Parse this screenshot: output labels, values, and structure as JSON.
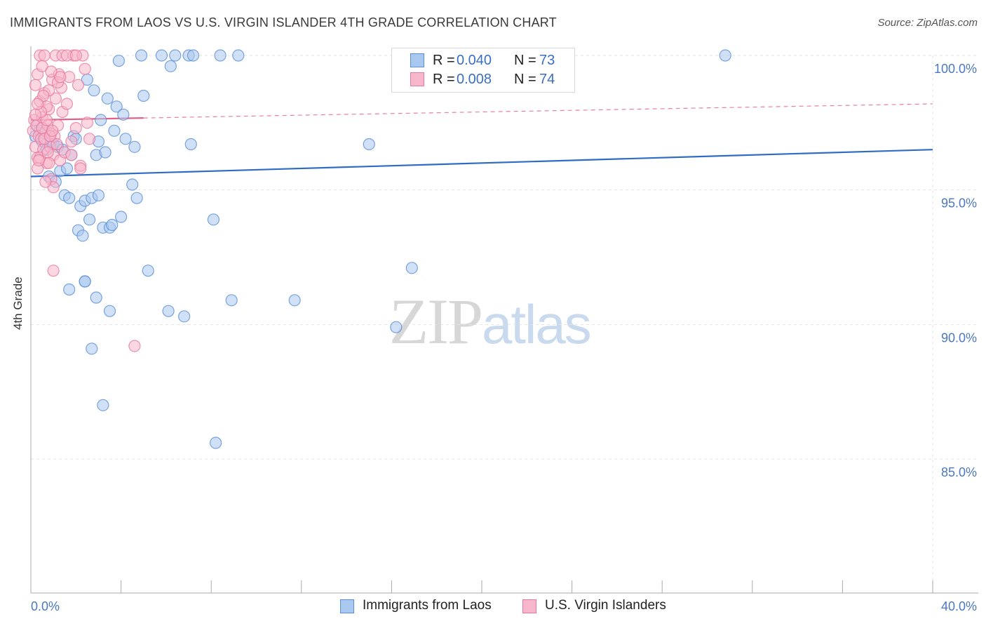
{
  "header": {
    "title": "IMMIGRANTS FROM LAOS VS U.S. VIRGIN ISLANDER 4TH GRADE CORRELATION CHART",
    "source": "Source: ZipAtlas.com"
  },
  "legend": {
    "r_label": "R =",
    "n_label": "N =",
    "rows": [
      {
        "r": "0.040",
        "n": "73"
      },
      {
        "r": "0.008",
        "n": "74"
      }
    ]
  },
  "watermark": {
    "zip": "ZIP",
    "atlas": "atlas"
  },
  "colors": {
    "blue_fill": "#a9c8f0",
    "blue_stroke": "#5b8fd6",
    "blue_line": "#2f6cc6",
    "pink_fill": "#f7b6cb",
    "pink_stroke": "#e9789d",
    "pink_line": "#e0628b",
    "tick_label": "#4a78c2",
    "grid": "#e3e3e3"
  },
  "chart_data": {
    "type": "scatter",
    "title": "IMMIGRANTS FROM LAOS VS U.S. VIRGIN ISLANDER 4TH GRADE CORRELATION CHART",
    "ylabel": "4th Grade",
    "xlim": [
      0,
      40
    ],
    "ylim": [
      80.5,
      100.8
    ],
    "x_tick_labels": [
      "0.0%",
      "40.0%"
    ],
    "y_ticks": [
      85,
      90,
      95,
      100
    ],
    "y_tick_labels": [
      "85.0%",
      "90.0%",
      "95.0%",
      "100.0%"
    ],
    "grid": true,
    "legend_position": "top-center",
    "series": [
      {
        "name": "Immigrants from Laos",
        "r": 0.04,
        "n": 73,
        "trend": {
          "x": [
            0,
            40
          ],
          "y": [
            95.5,
            96.5
          ],
          "style": "solid"
        },
        "points": [
          [
            0.2,
            97.0
          ],
          [
            0.3,
            97.4
          ],
          [
            0.4,
            97.2
          ],
          [
            0.5,
            96.8
          ],
          [
            0.6,
            97.1
          ],
          [
            0.7,
            96.5
          ],
          [
            0.8,
            95.5
          ],
          [
            0.9,
            96.8
          ],
          [
            1.0,
            96.7
          ],
          [
            1.1,
            95.3
          ],
          [
            1.2,
            96.6
          ],
          [
            1.3,
            95.7
          ],
          [
            1.4,
            96.5
          ],
          [
            1.5,
            94.8
          ],
          [
            1.6,
            95.8
          ],
          [
            1.7,
            94.7
          ],
          [
            1.8,
            96.3
          ],
          [
            1.9,
            97.0
          ],
          [
            2.0,
            96.9
          ],
          [
            2.1,
            93.5
          ],
          [
            2.2,
            94.4
          ],
          [
            2.3,
            93.3
          ],
          [
            2.4,
            94.6
          ],
          [
            2.5,
            99.1
          ],
          [
            2.6,
            93.9
          ],
          [
            2.7,
            94.7
          ],
          [
            2.8,
            98.7
          ],
          [
            2.9,
            96.3
          ],
          [
            3.0,
            96.8
          ],
          [
            3.1,
            97.6
          ],
          [
            3.2,
            93.6
          ],
          [
            3.3,
            96.4
          ],
          [
            3.4,
            98.4
          ],
          [
            3.5,
            93.6
          ],
          [
            3.6,
            93.7
          ],
          [
            3.7,
            97.2
          ],
          [
            3.8,
            98.1
          ],
          [
            3.9,
            99.8
          ],
          [
            4.0,
            94.0
          ],
          [
            4.1,
            97.8
          ],
          [
            4.5,
            95.2
          ],
          [
            5.0,
            98.5
          ],
          [
            4.7,
            94.7
          ],
          [
            5.8,
            100.0
          ],
          [
            6.2,
            99.6
          ],
          [
            6.4,
            100.0
          ],
          [
            7.0,
            100.0
          ],
          [
            7.1,
            96.7
          ],
          [
            8.1,
            93.9
          ],
          [
            9.2,
            100.0
          ],
          [
            15.0,
            96.7
          ],
          [
            16.9,
            92.1
          ],
          [
            30.8,
            100.0
          ],
          [
            16.2,
            89.9
          ],
          [
            2.4,
            91.6
          ],
          [
            2.4,
            91.6
          ],
          [
            3.5,
            90.5
          ],
          [
            6.1,
            90.5
          ],
          [
            6.8,
            90.3
          ],
          [
            8.9,
            90.9
          ],
          [
            11.7,
            90.9
          ],
          [
            2.7,
            89.1
          ],
          [
            3.2,
            87.0
          ],
          [
            8.2,
            85.6
          ],
          [
            5.2,
            92.0
          ],
          [
            4.9,
            100.0
          ],
          [
            7.2,
            100.0
          ],
          [
            8.4,
            100.0
          ],
          [
            4.2,
            96.9
          ],
          [
            2.9,
            91.0
          ],
          [
            1.7,
            91.3
          ],
          [
            4.6,
            96.6
          ],
          [
            3.0,
            94.8
          ]
        ]
      },
      {
        "name": "U.S. Virgin Islanders",
        "r": 0.008,
        "n": 74,
        "trend": {
          "x": [
            0,
            40
          ],
          "y": [
            97.6,
            98.2
          ],
          "style": "solid-then-dashed",
          "solid_until": 5
        },
        "points": [
          [
            0.1,
            97.2
          ],
          [
            0.15,
            97.6
          ],
          [
            0.2,
            96.6
          ],
          [
            0.25,
            97.4
          ],
          [
            0.3,
            96.2
          ],
          [
            0.35,
            97.0
          ],
          [
            0.4,
            98.3
          ],
          [
            0.45,
            96.9
          ],
          [
            0.5,
            97.7
          ],
          [
            0.55,
            96.5
          ],
          [
            0.6,
            98.6
          ],
          [
            0.65,
            97.2
          ],
          [
            0.7,
            96.0
          ],
          [
            0.75,
            97.4
          ],
          [
            0.8,
            98.0
          ],
          [
            0.85,
            96.6
          ],
          [
            0.9,
            97.1
          ],
          [
            0.95,
            99.1
          ],
          [
            1.0,
            96.3
          ],
          [
            1.05,
            97.0
          ],
          [
            1.1,
            98.4
          ],
          [
            1.15,
            96.7
          ],
          [
            1.2,
            97.4
          ],
          [
            1.25,
            99.3
          ],
          [
            1.3,
            96.1
          ],
          [
            1.35,
            98.8
          ],
          [
            1.4,
            97.9
          ],
          [
            1.5,
            96.4
          ],
          [
            1.6,
            98.2
          ],
          [
            1.7,
            99.2
          ],
          [
            1.8,
            96.8
          ],
          [
            1.9,
            100.0
          ],
          [
            2.0,
            97.3
          ],
          [
            2.1,
            98.9
          ],
          [
            2.2,
            95.9
          ],
          [
            2.3,
            100.0
          ],
          [
            2.4,
            99.5
          ],
          [
            2.5,
            97.5
          ],
          [
            0.2,
            98.9
          ],
          [
            0.3,
            99.3
          ],
          [
            0.4,
            100.0
          ],
          [
            0.5,
            99.6
          ],
          [
            0.6,
            100.0
          ],
          [
            0.7,
            98.1
          ],
          [
            0.8,
            96.0
          ],
          [
            0.9,
            95.4
          ],
          [
            1.0,
            95.1
          ],
          [
            1.1,
            100.0
          ],
          [
            1.2,
            99.0
          ],
          [
            1.3,
            99.2
          ],
          [
            0.3,
            95.8
          ],
          [
            0.4,
            96.2
          ],
          [
            0.5,
            97.3
          ],
          [
            0.6,
            96.9
          ],
          [
            0.7,
            97.6
          ],
          [
            0.8,
            98.7
          ],
          [
            0.9,
            99.4
          ],
          [
            1.4,
            100.0
          ],
          [
            1.6,
            100.0
          ],
          [
            2.0,
            100.0
          ],
          [
            2.6,
            96.9
          ],
          [
            0.35,
            96.1
          ],
          [
            0.45,
            97.9
          ],
          [
            0.55,
            98.5
          ],
          [
            0.65,
            95.3
          ],
          [
            0.75,
            96.4
          ],
          [
            0.85,
            97.0
          ],
          [
            0.95,
            97.2
          ],
          [
            1.0,
            92.0
          ],
          [
            4.6,
            89.2
          ],
          [
            2.2,
            95.8
          ],
          [
            1.8,
            96.3
          ],
          [
            0.2,
            97.8
          ],
          [
            0.3,
            98.2
          ]
        ]
      }
    ]
  }
}
